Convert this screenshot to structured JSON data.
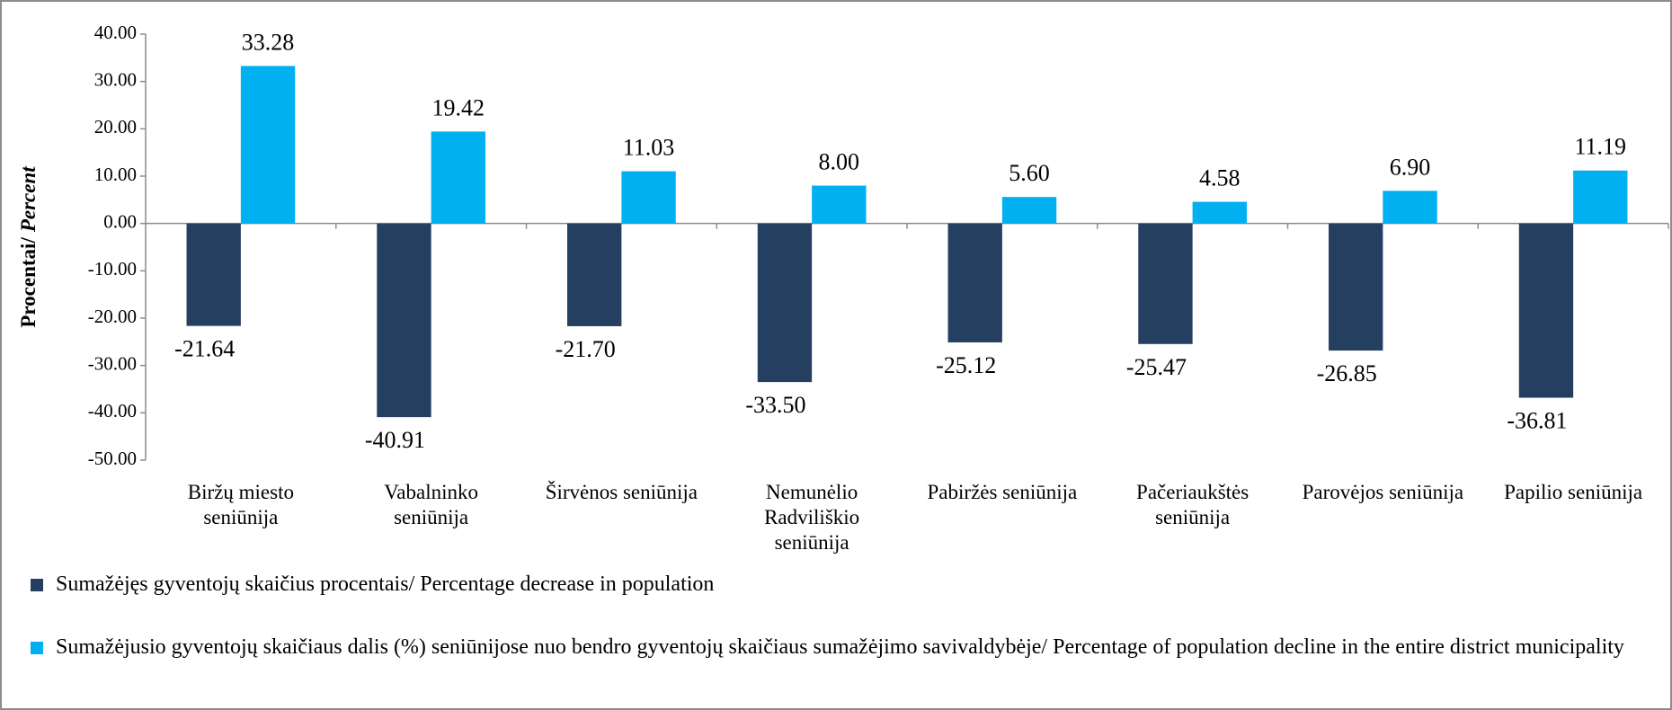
{
  "chart_data": {
    "type": "bar",
    "ylabel": [
      "Procentai/",
      "Percent"
    ],
    "categories": [
      "Biržų miesto seniūnija",
      "Vabalninko seniūnija",
      "Širvėnos seniūnija",
      "Nemunėlio Radviliškio seniūnija",
      "Pabiržės seniūnija",
      "Pačeriaukštės seniūnija",
      "Parovėjos seniūnija",
      "Papilio seniūnija"
    ],
    "series": [
      {
        "name": "Sumažėjęs gyventojų skaičius procentais/ Percentage decrease in population",
        "color": "#243f60",
        "values": [
          -21.64,
          -40.91,
          -21.7,
          -33.5,
          -25.12,
          -25.47,
          -26.85,
          -36.81
        ],
        "value_labels": [
          "-21.64",
          "-40.91",
          "-21.70",
          "-33.50",
          "-25.12",
          "-25.47",
          "-26.85",
          "-36.81"
        ]
      },
      {
        "name": "Sumažėjusio gyventojų skaičiaus dalis (%) seniūnijose nuo bendro gyventojų skaičiaus sumažėjimo savivaldybėje/ Percentage of population decline in the entire district municipality",
        "color": "#00b0f0",
        "values": [
          33.28,
          19.42,
          11.03,
          8.0,
          5.6,
          4.58,
          6.9,
          11.19
        ],
        "value_labels": [
          "33.28",
          "19.42",
          "11.03",
          "8.00",
          "5.60",
          "4.58",
          "6.90",
          "11.19"
        ]
      }
    ],
    "ylim": [
      -50,
      40
    ],
    "yticks": [
      {
        "value": -50,
        "label": "-50.00"
      },
      {
        "value": -40,
        "label": "-40.00"
      },
      {
        "value": -30,
        "label": "-30.00"
      },
      {
        "value": -20,
        "label": "-20.00"
      },
      {
        "value": -10,
        "label": "-10.00"
      },
      {
        "value": 0,
        "label": "0.00"
      },
      {
        "value": 10,
        "label": "10.00"
      },
      {
        "value": 20,
        "label": "20.00"
      },
      {
        "value": 30,
        "label": "30.00"
      },
      {
        "value": 40,
        "label": "40.00"
      }
    ],
    "grid": false
  }
}
